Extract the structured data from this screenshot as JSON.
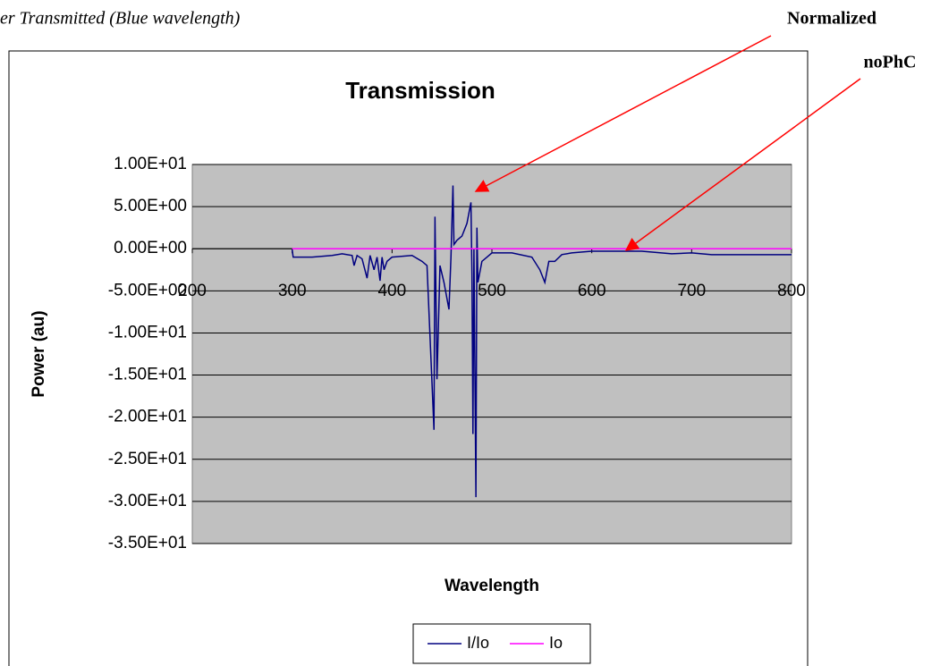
{
  "caption": "er Transmitted (Blue wavelength)",
  "annotations": [
    "Normalized",
    "noPhC"
  ],
  "chart_data": {
    "type": "line",
    "title": "Transmission",
    "x_label": "Wavelength",
    "y_label": "Power (au)",
    "xlim": [
      200,
      800
    ],
    "xticks": [
      200,
      300,
      400,
      500,
      600,
      700,
      800
    ],
    "ylim": [
      -35,
      10
    ],
    "yticks": [
      {
        "value": 10,
        "label": "1.00E+01"
      },
      {
        "value": 5,
        "label": "5.00E+00"
      },
      {
        "value": 0,
        "label": "0.00E+00"
      },
      {
        "value": -5,
        "label": "-5.00E+00"
      },
      {
        "value": -10,
        "label": "-1.00E+01"
      },
      {
        "value": -15,
        "label": "-1.50E+01"
      },
      {
        "value": -20,
        "label": "-2.00E+01"
      },
      {
        "value": -25,
        "label": "-2.50E+01"
      },
      {
        "value": -30,
        "label": "-3.00E+01"
      },
      {
        "value": -35,
        "label": "-3.50E+01"
      }
    ],
    "grid": true,
    "legend": "bottom",
    "series": [
      {
        "name": "I/Io",
        "color": "#000080",
        "x": [
          300,
          301,
          320,
          340,
          350,
          360,
          362,
          365,
          370,
          375,
          378,
          382,
          385,
          388,
          390,
          392,
          395,
          400,
          420,
          430,
          435,
          442,
          443,
          445,
          448,
          452,
          457,
          459,
          461,
          462,
          465,
          470,
          475,
          479,
          480,
          481,
          482,
          484,
          485,
          486,
          490,
          495,
          500,
          520,
          540,
          548,
          553,
          557,
          563,
          570,
          580,
          600,
          650,
          680,
          700,
          720,
          800
        ],
        "values": [
          -0.1,
          -1,
          -1,
          -0.8,
          -0.6,
          -0.8,
          -2,
          -0.8,
          -1.2,
          -3.5,
          -0.8,
          -2.5,
          -1,
          -3.8,
          -1,
          -2.5,
          -1.5,
          -1,
          -0.8,
          -1.5,
          -2,
          -21.5,
          3.8,
          -15.5,
          -2,
          -4,
          -7.2,
          -1,
          7.5,
          0.5,
          1,
          1.5,
          3,
          5.5,
          -3,
          -22,
          0,
          -29.5,
          2.5,
          -4,
          -1.5,
          -1,
          -0.5,
          -0.5,
          -1,
          -2.5,
          -4,
          -1.5,
          -1.5,
          -0.7,
          -0.5,
          -0.3,
          -0.3,
          -0.6,
          -0.5,
          -0.7,
          -0.7
        ]
      },
      {
        "name": "Io",
        "color": "#ff00ff",
        "x": [
          300,
          800
        ],
        "values": [
          0,
          0
        ]
      }
    ]
  }
}
